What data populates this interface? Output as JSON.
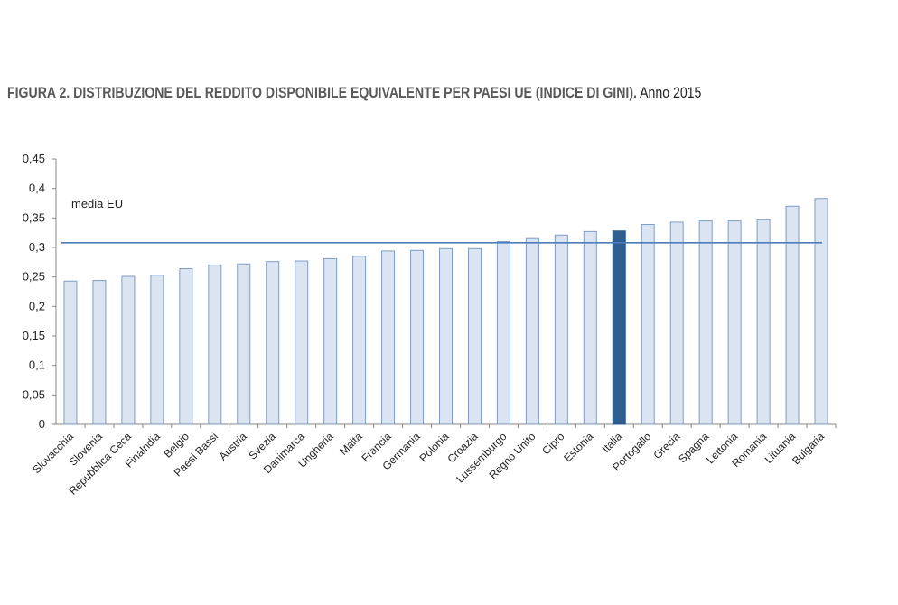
{
  "header": {
    "title_bold": "FIGURA 2. DISTRIBUZIONE DEL REDDITO DISPONIBILE EQUIVALENTE PER PAESI UE (INDICE DI GINI).",
    "title_normal": "Anno 2015"
  },
  "chart_data": {
    "type": "bar",
    "title": "FIGURA 2. DISTRIBUZIONE DEL REDDITO DISPONIBILE EQUIVALENTE PER PAESI UE (INDICE DI GINI). Anno 2015",
    "xlabel": "",
    "ylabel": "",
    "ylim": [
      0,
      0.45
    ],
    "yticks": [
      "0",
      "0,05",
      "0,1",
      "0,15",
      "0,2",
      "0,25",
      "0,3",
      "0,35",
      "0,4",
      "0,45"
    ],
    "grid": false,
    "categories": [
      "Slovacchia",
      "Slovenia",
      "Repubblica Ceca",
      "Finalndia",
      "Belgio",
      "Paesi Bassi",
      "Austria",
      "Svezia",
      "Danimarca",
      "Ungheria",
      "Malta",
      "Francia",
      "Germania",
      "Polonia",
      "Croazia",
      "Lussemburgo",
      "Regno Unito",
      "Cipro",
      "Estonia",
      "Italia",
      "Portogallo",
      "Grecia",
      "Spagna",
      "Lettonia",
      "Romania",
      "Lituania",
      "Bulgaria"
    ],
    "values": [
      0.243,
      0.244,
      0.251,
      0.253,
      0.264,
      0.27,
      0.272,
      0.276,
      0.277,
      0.281,
      0.285,
      0.294,
      0.295,
      0.298,
      0.298,
      0.31,
      0.315,
      0.321,
      0.327,
      0.328,
      0.339,
      0.343,
      0.345,
      0.345,
      0.347,
      0.37,
      0.383
    ],
    "highlight": "Italia",
    "reference_line": {
      "label": "media EU",
      "value": 0.308
    },
    "colors": {
      "bar": "#dbe5f1",
      "bar_edge": "#7f9cc4",
      "highlight": "#2f5d91",
      "line": "#4a7ebb"
    }
  }
}
